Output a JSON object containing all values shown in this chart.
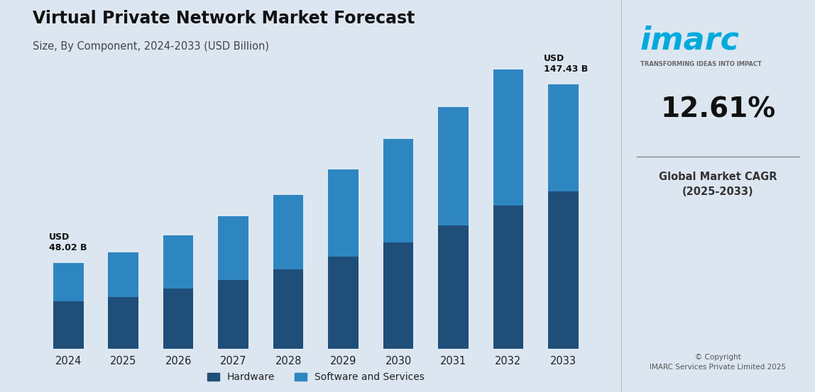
{
  "title": "Virtual Private Network Market Forecast",
  "subtitle": "Size, By Component, 2024-2033 (USD Billion)",
  "years": [
    2024,
    2025,
    2026,
    2027,
    2028,
    2029,
    2030,
    2031,
    2032,
    2033
  ],
  "hardware": [
    26.5,
    29.0,
    33.5,
    38.5,
    44.5,
    51.5,
    59.5,
    69.0,
    80.0,
    88.0
  ],
  "software_services": [
    21.52,
    25.0,
    30.0,
    35.5,
    41.5,
    48.5,
    57.5,
    66.0,
    76.0,
    59.43
  ],
  "color_hardware": "#1f4e79",
  "color_software": "#2e86c1",
  "color_background": "#dce6f1",
  "bar_width": 0.55,
  "ylim_max": 175,
  "total_2024": 48.02,
  "total_2033": 147.43,
  "label_2024_str": "USD\n48.02 B",
  "label_2033_str": "USD\n147.43 B",
  "cagr_pct": "12.61%",
  "cagr_label": "Global Market CAGR\n(2025-2033)",
  "legend_hardware": "Hardware",
  "legend_software": "Software and Services",
  "copyright": "© Copyright\nIMARC Services Private Limited 2025",
  "imarc_color": "#00aadd",
  "imarc_text": "imarc",
  "imarc_tagline": "TRANSFORMING IDEAS INTO IMPACT"
}
